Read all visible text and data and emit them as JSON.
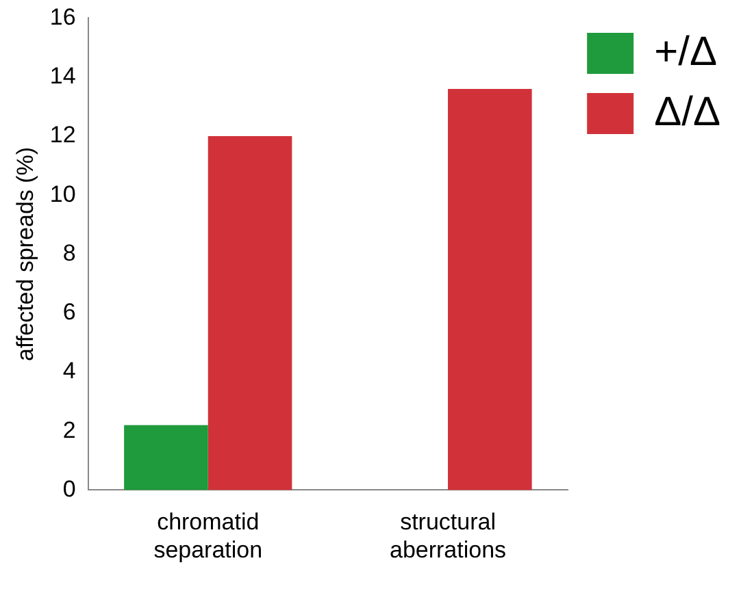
{
  "chart_data": {
    "type": "bar",
    "ylabel": "affected spreads (%)",
    "categories": [
      "chromatid separation",
      "structural aberrations"
    ],
    "series": [
      {
        "name": "+/Δ",
        "color": "#1f9a3c",
        "values": [
          2.2,
          0
        ]
      },
      {
        "name": "Δ/Δ",
        "color": "#d1323a",
        "values": [
          12.0,
          13.6
        ]
      }
    ],
    "ylim": [
      0,
      16
    ],
    "yticks": [
      0,
      2,
      4,
      6,
      8,
      10,
      12,
      14,
      16
    ],
    "grid": false,
    "legend": "right"
  }
}
